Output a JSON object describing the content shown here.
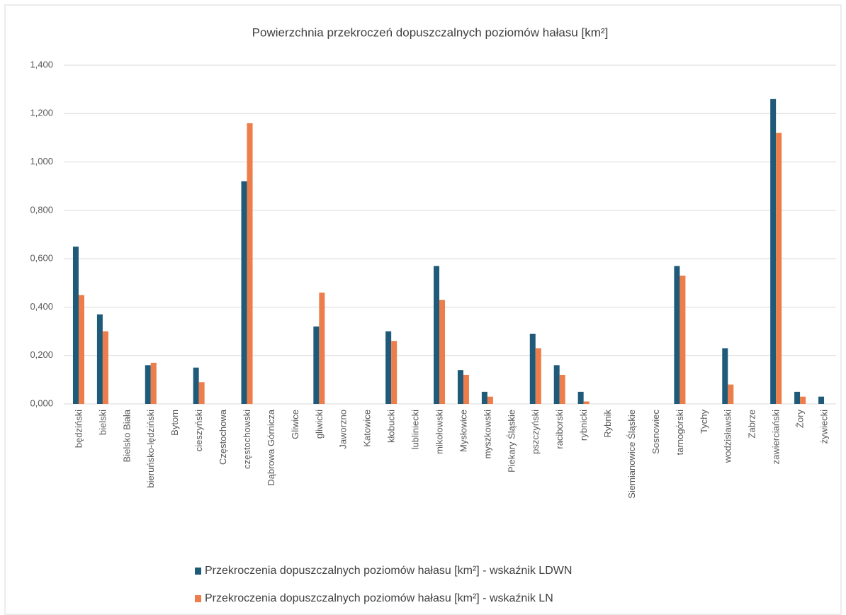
{
  "chart_data": {
    "type": "bar",
    "title": "Powierzchnia przekroczeń dopuszczalnych poziomów hałasu [km²]",
    "categories": [
      "będziński",
      "bielski",
      "Bielsko Biała",
      "bieruńsko-lędziński",
      "Bytom",
      "cieszyński",
      "Częstochowa",
      "częstochowski",
      "Dąbrowa Górnicza",
      "Gliwice",
      "gliwicki",
      "Jaworzno",
      "Katowice",
      "kłobucki",
      "lubliniecki",
      "mikołowski",
      "Mysłowice",
      "myszkowski",
      "Piekary Śląskie",
      "pszczyński",
      "raciborski",
      "rybnicki",
      "Rybnik",
      "Siemianowice Śląskie",
      "Sosnowiec",
      "tarnogórski",
      "Tychy",
      "wodzisławski",
      "Zabrze",
      "zawierciański",
      "Żory",
      "żywiecki"
    ],
    "series": [
      {
        "name": "Przekroczenia dopuszczalnych poziomów hałasu [km²] - wskaźnik LDWN",
        "color": "#1f5b78",
        "values": [
          0.65,
          0.37,
          0,
          0.16,
          0,
          0.15,
          0,
          0.92,
          0,
          0,
          0.32,
          0,
          0,
          0.3,
          0,
          0.57,
          0.14,
          0.05,
          0,
          0.29,
          0.16,
          0.05,
          0,
          0,
          0,
          0.57,
          0,
          0.23,
          0,
          1.26,
          0.05,
          0.03
        ]
      },
      {
        "name": "Przekroczenia dopuszczalnych poziomów hałasu [km²] - wskaźnik LN",
        "color": "#ed7d4a",
        "values": [
          0.45,
          0.3,
          0,
          0.17,
          0,
          0.09,
          0,
          1.16,
          0,
          0,
          0.46,
          0,
          0,
          0.26,
          0,
          0.43,
          0.12,
          0.03,
          0,
          0.23,
          0.12,
          0.01,
          0,
          0,
          0,
          0.53,
          0,
          0.08,
          0,
          1.12,
          0.03,
          0
        ]
      }
    ],
    "ylim": [
      0,
      1.4
    ],
    "yticks": [
      {
        "value": 0,
        "label": "0,000"
      },
      {
        "value": 0.2,
        "label": "0,200"
      },
      {
        "value": 0.4,
        "label": "0,400"
      },
      {
        "value": 0.6,
        "label": "0,600"
      },
      {
        "value": 0.8,
        "label": "0,800"
      },
      {
        "value": 1.0,
        "label": "1,000"
      },
      {
        "value": 1.2,
        "label": "1,200"
      },
      {
        "value": 1.4,
        "label": "1,400"
      }
    ],
    "grid": true
  }
}
